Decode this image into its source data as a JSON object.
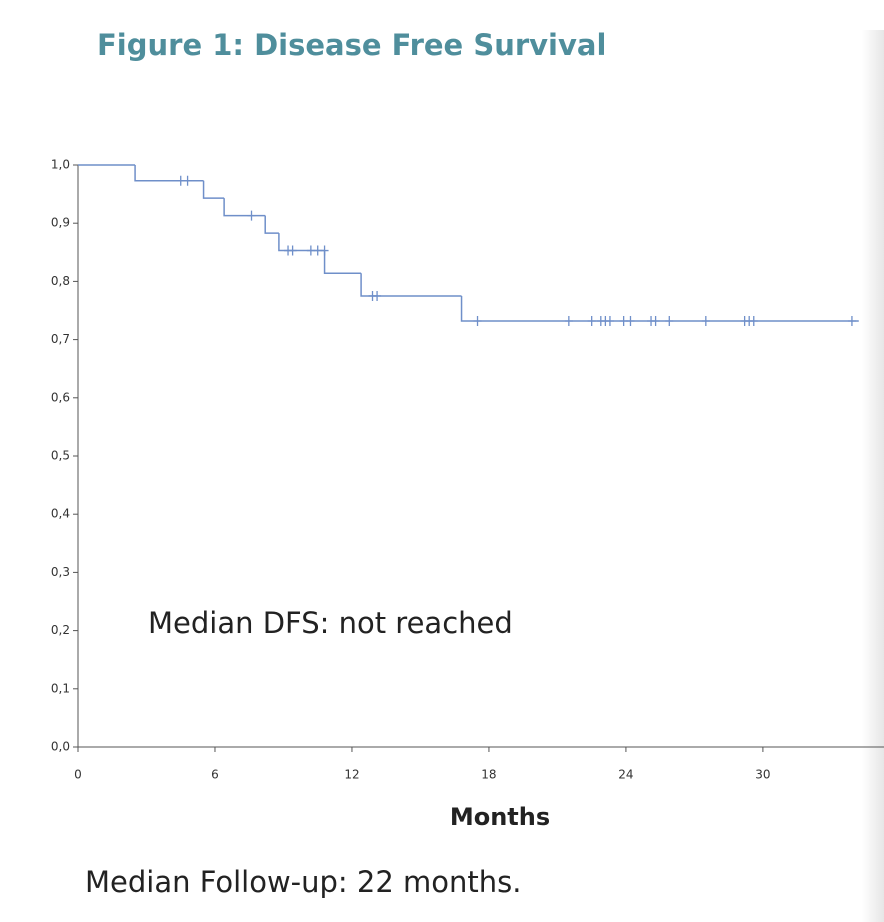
{
  "chart_data": {
    "type": "survival",
    "title": "Figure 1: Disease Free Survival",
    "x_label": "Months",
    "annotation": "Median DFS: not reached",
    "footnote": "Median Follow-up: 22 months.",
    "color": "#6f8fc9",
    "steps": {
      "x": [
        0,
        2.5,
        5.5,
        6.4,
        8.2,
        8.8,
        10.8,
        12.4,
        16.8,
        34.2
      ],
      "values": [
        1,
        0.973,
        0.943,
        0.913,
        0.883,
        0.853,
        0.814,
        0.775,
        0.732,
        0.732
      ]
    },
    "censored": {
      "x": [
        4.5,
        4.8,
        7.6,
        9.2,
        9.4,
        10.2,
        10.5,
        10.8,
        12.9,
        13.1,
        17.5,
        21.5,
        22.5,
        22.9,
        23.1,
        23.3,
        23.9,
        24.2,
        25.1,
        25.3,
        25.9,
        27.5,
        29.2,
        29.4,
        29.6,
        33.9
      ],
      "values": [
        0.973,
        0.973,
        0.913,
        0.853,
        0.853,
        0.853,
        0.853,
        0.853,
        0.775,
        0.775,
        0.732,
        0.732,
        0.732,
        0.732,
        0.732,
        0.732,
        0.732,
        0.732,
        0.732,
        0.732,
        0.732,
        0.732,
        0.732,
        0.732,
        0.732,
        0.732
      ]
    },
    "xlim": [
      0,
      35.3
    ],
    "ylim": [
      0,
      1
    ],
    "xticks": [
      0,
      6,
      12,
      18,
      24,
      30
    ],
    "yticks": [
      {
        "value": 0,
        "label": "0,0"
      },
      {
        "value": 0.1,
        "label": "0,1"
      },
      {
        "value": 0.2,
        "label": "0,2"
      },
      {
        "value": 0.3,
        "label": "0,3"
      },
      {
        "value": 0.4,
        "label": "0,4"
      },
      {
        "value": 0.5,
        "label": "0,5"
      },
      {
        "value": 0.6,
        "label": "0,6"
      },
      {
        "value": 0.7,
        "label": "0,7"
      },
      {
        "value": 0.8,
        "label": "0,8"
      },
      {
        "value": 0.9,
        "label": "0,9"
      },
      {
        "value": 1,
        "label": "1,0"
      }
    ]
  }
}
